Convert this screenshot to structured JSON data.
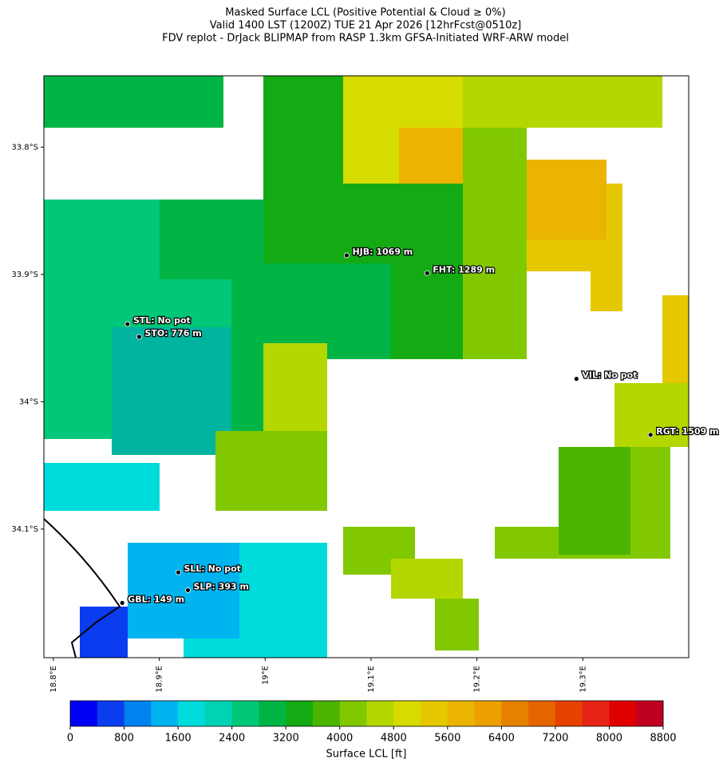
{
  "title": [
    "Masked Surface LCL (Positive Potential & Cloud ≥ 0%)",
    "Valid 1400 LST (1200Z) TUE 21 Apr 2026 [12hrFcst@0510z]",
    "FDV replot - DrJack BLIPMAP from RASP 1.3km GFSA-Initiated WRF-ARW model"
  ],
  "map": {
    "xlim": [
      18.791,
      19.4
    ],
    "ylim": [
      33.744,
      34.201
    ],
    "xticks": [
      {
        "value": 18.8,
        "label": "18.8°E"
      },
      {
        "value": 18.9,
        "label": "18.9°E"
      },
      {
        "value": 19.0,
        "label": "19°E"
      },
      {
        "value": 19.1,
        "label": "19.1°E"
      },
      {
        "value": 19.2,
        "label": "19.2°E"
      },
      {
        "value": 19.3,
        "label": "19.3°E"
      }
    ],
    "yticks": [
      {
        "value": 33.8,
        "label": "33.8°S"
      },
      {
        "value": 33.9,
        "label": "33.9°S"
      },
      {
        "value": 34.0,
        "label": "34°S"
      },
      {
        "value": 34.1,
        "label": "34.1°S"
      }
    ],
    "stations": [
      {
        "label": "HJB: 1069 m",
        "lon": 19.077,
        "lat": 33.885
      },
      {
        "label": "FHT: 1289 m",
        "lon": 19.153,
        "lat": 33.899
      },
      {
        "label": "STL: No pot",
        "lon": 18.87,
        "lat": 33.939
      },
      {
        "label": "STO: 776 m",
        "lon": 18.881,
        "lat": 33.949
      },
      {
        "label": "VIL: No pot",
        "lon": 19.294,
        "lat": 33.982
      },
      {
        "label": "RGT: 1509 m",
        "lon": 19.364,
        "lat": 34.026
      },
      {
        "label": "SLL: No pot",
        "lon": 18.918,
        "lat": 34.134
      },
      {
        "label": "SLP: 393 m",
        "lon": 18.927,
        "lat": 34.148
      },
      {
        "label": "GBL: 149 m",
        "lon": 18.865,
        "lat": 34.158
      }
    ]
  },
  "colorbar": {
    "label": "Surface LCL [ft]",
    "range": [
      0,
      8800
    ],
    "ticks": [
      0,
      800,
      1600,
      2400,
      3200,
      4000,
      4800,
      5600,
      6400,
      7200,
      8000,
      8800
    ],
    "colors": [
      "#0000f5",
      "#0a3cf0",
      "#0082f0",
      "#00b4f0",
      "#00dcdc",
      "#00d2b4",
      "#00c878",
      "#00b446",
      "#14aa14",
      "#4bb400",
      "#82c800",
      "#b4d700",
      "#d7dc00",
      "#e6c800",
      "#ebb400",
      "#eba000",
      "#e68200",
      "#e66400",
      "#e64100",
      "#e62314",
      "#e10000",
      "#c00020"
    ]
  }
}
